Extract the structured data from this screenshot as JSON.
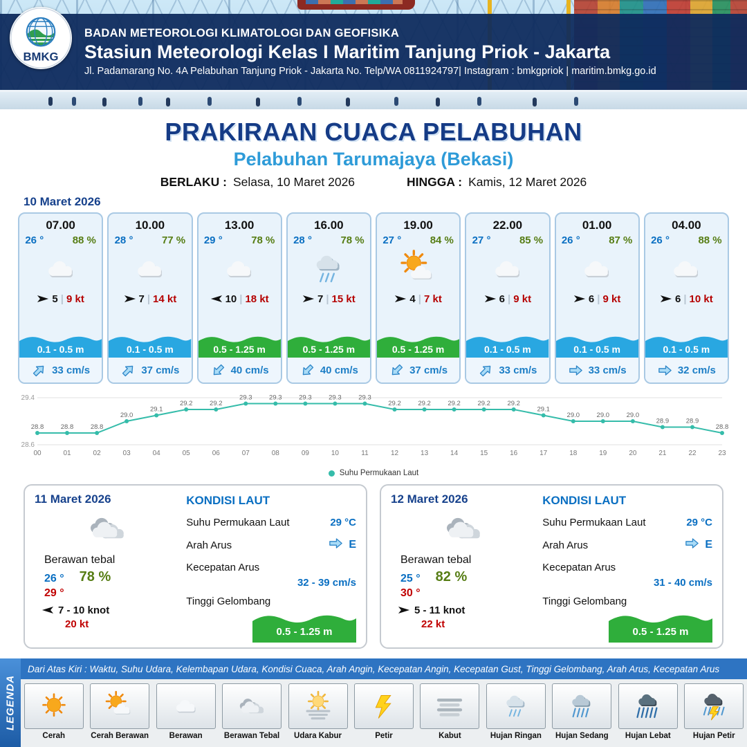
{
  "header": {
    "logo_text": "BMKG",
    "agency": "BADAN METEOROLOGI KLIMATOLOGI DAN GEOFISIKA",
    "station": "Stasiun Meteorologi Kelas I Maritim Tanjung Priok - Jakarta",
    "address": "Jl. Padamarang No. 4A Pelabuhan Tanjung Priok - Jakarta No. Telp/WA 0811924797| Instagram : bmkgpriok | maritim.bmkg.go.id"
  },
  "title": {
    "main": "PRAKIRAAN CUACA PELABUHAN",
    "subtitle": "Pelabuhan Tarumajaya (Bekasi)",
    "berlaku_label": "BERLAKU :",
    "berlaku_value": "Selasa, 10 Maret 2026",
    "hingga_label": "HINGGA :",
    "hingga_value": "Kamis, 12 Maret 2026"
  },
  "colors": {
    "wave_blue": "#29a7e1",
    "wave_green": "#2fae3b",
    "temp_blue": "#0a6fc2",
    "humidity_green": "#567d14",
    "gust_red": "#b50000",
    "chart_teal": "#35bcaa"
  },
  "hourly": {
    "date": "10 Maret 2026",
    "cards": [
      {
        "time": "07.00",
        "temp": "26 °",
        "humidity": "88 %",
        "icon": "berawan",
        "wind_deg": 0,
        "wind": "5",
        "gust": "9 kt",
        "wave": "0.1 - 0.5 m",
        "wave_color": "blue",
        "current_deg": -45,
        "current": "33 cm/s"
      },
      {
        "time": "10.00",
        "temp": "28 °",
        "humidity": "77 %",
        "icon": "berawan",
        "wind_deg": 0,
        "wind": "7",
        "gust": "14 kt",
        "wave": "0.1 - 0.5 m",
        "wave_color": "blue",
        "current_deg": -45,
        "current": "37 cm/s"
      },
      {
        "time": "13.00",
        "temp": "29 °",
        "humidity": "78 %",
        "icon": "berawan",
        "wind_deg": 180,
        "wind": "10",
        "gust": "18 kt",
        "wave": "0.5 - 1.25 m",
        "wave_color": "green",
        "current_deg": 135,
        "current": "40 cm/s"
      },
      {
        "time": "16.00",
        "temp": "28 °",
        "humidity": "78 %",
        "icon": "hujan-ringan",
        "wind_deg": 0,
        "wind": "7",
        "gust": "15 kt",
        "wave": "0.5 - 1.25 m",
        "wave_color": "green",
        "current_deg": 135,
        "current": "40 cm/s"
      },
      {
        "time": "19.00",
        "temp": "27 °",
        "humidity": "84 %",
        "icon": "cerah-berawan",
        "wind_deg": 0,
        "wind": "4",
        "gust": "7 kt",
        "wave": "0.5 - 1.25 m",
        "wave_color": "green",
        "current_deg": 135,
        "current": "37 cm/s"
      },
      {
        "time": "22.00",
        "temp": "27 °",
        "humidity": "85 %",
        "icon": "berawan",
        "wind_deg": 0,
        "wind": "6",
        "gust": "9 kt",
        "wave": "0.1 - 0.5 m",
        "wave_color": "blue",
        "current_deg": -45,
        "current": "33 cm/s"
      },
      {
        "time": "01.00",
        "temp": "26 °",
        "humidity": "87 %",
        "icon": "berawan",
        "wind_deg": 0,
        "wind": "6",
        "gust": "9 kt",
        "wave": "0.1 - 0.5 m",
        "wave_color": "blue",
        "current_deg": 0,
        "current": "33 cm/s"
      },
      {
        "time": "04.00",
        "temp": "26 °",
        "humidity": "88 %",
        "icon": "berawan",
        "wind_deg": 0,
        "wind": "6",
        "gust": "10 kt",
        "wave": "0.1 - 0.5 m",
        "wave_color": "blue",
        "current_deg": 0,
        "current": "32 cm/s"
      }
    ]
  },
  "chart_data": {
    "type": "line",
    "series_label": "Suhu Permukaan Laut",
    "x": [
      "00",
      "01",
      "02",
      "03",
      "04",
      "05",
      "06",
      "07",
      "08",
      "09",
      "10",
      "11",
      "12",
      "13",
      "14",
      "15",
      "16",
      "17",
      "18",
      "19",
      "20",
      "21",
      "22",
      "23"
    ],
    "values": [
      28.8,
      28.8,
      28.8,
      29.0,
      29.1,
      29.2,
      29.2,
      29.3,
      29.3,
      29.3,
      29.3,
      29.3,
      29.2,
      29.2,
      29.2,
      29.2,
      29.2,
      29.1,
      29.0,
      29.0,
      29.0,
      28.9,
      28.9,
      28.8
    ],
    "ylim": [
      28.6,
      29.4
    ],
    "color": "#35bcaa",
    "grid": true,
    "legend_position": "bottom"
  },
  "daily": [
    {
      "date": "11 Maret 2026",
      "icon": "berawan-tebal",
      "condition": "Berawan tebal",
      "temp_min": "26 °",
      "temp_max": "29 °",
      "humidity": "78 %",
      "wind_deg": 180,
      "wind": "7 - 10 knot",
      "gust": "20 kt",
      "sea": {
        "heading": "KONDISI LAUT",
        "sst_label": "Suhu Permukaan Laut",
        "sst": "29 °C",
        "current_dir_label": "Arah Arus",
        "current_dir": "E",
        "current_speed_label": "Kecepatan Arus",
        "current_speed": "32 - 39 cm/s",
        "wave_label": "Tinggi Gelombang",
        "wave": "0.5 - 1.25 m"
      }
    },
    {
      "date": "12 Maret 2026",
      "icon": "berawan-tebal",
      "condition": "Berawan tebal",
      "temp_min": "25 °",
      "temp_max": "30 °",
      "humidity": "82 %",
      "wind_deg": 0,
      "wind": "5 - 11 knot",
      "gust": "22 kt",
      "sea": {
        "heading": "KONDISI LAUT",
        "sst_label": "Suhu Permukaan Laut",
        "sst": "29 °C",
        "current_dir_label": "Arah Arus",
        "current_dir": "E",
        "current_speed_label": "Kecepatan Arus",
        "current_speed": "31 - 40 cm/s",
        "wave_label": "Tinggi Gelombang",
        "wave": "0.5 - 1.25 m"
      }
    }
  ],
  "legend": {
    "strip": "LEGENDA",
    "note": "Dari Atas Kiri : Waktu, Suhu Udara, Kelembapan Udara, Kondisi Cuaca, Arah Angin, Kecepatan Angin, Kecepatan Gust, Tinggi Gelombang, Arah Arus, Kecepatan Arus",
    "items": [
      {
        "icon": "cerah",
        "label": "Cerah"
      },
      {
        "icon": "cerah-berawan",
        "label": "Cerah Berawan"
      },
      {
        "icon": "berawan",
        "label": "Berawan"
      },
      {
        "icon": "berawan-tebal",
        "label": "Berawan Tebal"
      },
      {
        "icon": "udara-kabur",
        "label": "Udara Kabur"
      },
      {
        "icon": "petir",
        "label": "Petir"
      },
      {
        "icon": "kabut",
        "label": "Kabut"
      },
      {
        "icon": "hujan-ringan",
        "label": "Hujan Ringan"
      },
      {
        "icon": "hujan-sedang",
        "label": "Hujan Sedang"
      },
      {
        "icon": "hujan-lebat",
        "label": "Hujan Lebat"
      },
      {
        "icon": "hujan-petir",
        "label": "Hujan Petir"
      }
    ]
  }
}
